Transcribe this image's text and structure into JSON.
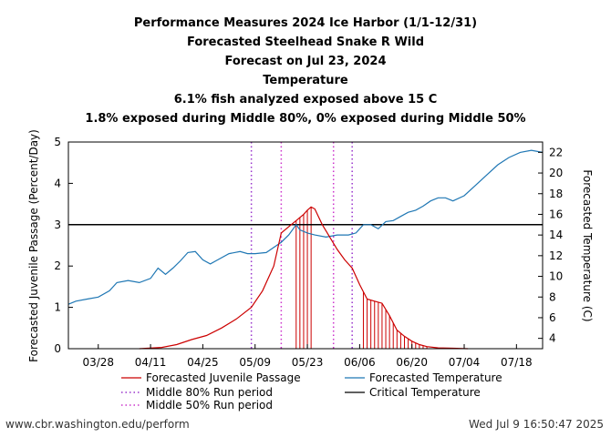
{
  "titles": [
    "Performance Measures 2024 Ice Harbor (1/1-12/31)",
    "Forecasted Steelhead Snake R Wild",
    "Forecast on Jul 23, 2024",
    "Temperature",
    "6.1% fish analyzed exposed above 15 C",
    "1.8% exposed during Middle 80%, 0% exposed during Middle 50%"
  ],
  "footer": {
    "left": "www.cbr.washington.edu/perform",
    "right": "Wed Jul  9 16:50:47 2025"
  },
  "colors": {
    "passage": "#cc0000",
    "temperature": "#1f77b4",
    "critical": "#000000",
    "middle80": "#9933cc",
    "middle50": "#cc33cc"
  },
  "chart_data": {
    "type": "line",
    "x_axis": {
      "range": [
        "2024-03-20",
        "2024-07-25"
      ],
      "tick_labels": [
        "03/28",
        "04/11",
        "04/25",
        "05/09",
        "05/23",
        "06/06",
        "06/20",
        "07/04",
        "07/18"
      ],
      "tick_dates": [
        "2024-03-28",
        "2024-04-11",
        "2024-04-25",
        "2024-05-09",
        "2024-05-23",
        "2024-06-06",
        "2024-06-20",
        "2024-07-04",
        "2024-07-18"
      ]
    },
    "y_left": {
      "label": "Forecasted Juvenile Passage (Percent/Day)",
      "range": [
        0,
        5
      ],
      "ticks": [
        "0",
        "1",
        "2",
        "3",
        "4",
        "5"
      ]
    },
    "y_right": {
      "label": "Forecasted Temperature (C)",
      "range": [
        3,
        23
      ],
      "ticks": [
        "4",
        "6",
        "8",
        "10",
        "12",
        "14",
        "16",
        "18",
        "20",
        "22"
      ]
    },
    "legend": [
      {
        "label": "Forecasted Juvenile Passage",
        "style": "line",
        "color": "#cc0000"
      },
      {
        "label": "Forecasted Temperature",
        "style": "line",
        "color": "#1f77b4"
      },
      {
        "label": "Middle 80% Run period",
        "style": "dotted",
        "color": "#9933cc"
      },
      {
        "label": "Critical Temperature",
        "style": "line",
        "color": "#000000"
      },
      {
        "label": "Middle 50% Run period",
        "style": "dotted",
        "color": "#cc33cc"
      }
    ],
    "critical_temperature": 15,
    "middle80_dates": [
      "2024-05-08",
      "2024-06-04"
    ],
    "middle50_dates": [
      "2024-05-16",
      "2024-05-30"
    ],
    "series": [
      {
        "name": "Forecasted Juvenile Passage",
        "axis": "left",
        "x": [
          "2024-04-08",
          "2024-04-14",
          "2024-04-18",
          "2024-04-22",
          "2024-04-26",
          "2024-04-30",
          "2024-05-04",
          "2024-05-08",
          "2024-05-11",
          "2024-05-14",
          "2024-05-16",
          "2024-05-18",
          "2024-05-20",
          "2024-05-22",
          "2024-05-23",
          "2024-05-24",
          "2024-05-25",
          "2024-05-27",
          "2024-05-29",
          "2024-05-31",
          "2024-06-02",
          "2024-06-04",
          "2024-06-06",
          "2024-06-08",
          "2024-06-10",
          "2024-06-12",
          "2024-06-14",
          "2024-06-16",
          "2024-06-18",
          "2024-06-20",
          "2024-06-22",
          "2024-06-24",
          "2024-06-27",
          "2024-07-01",
          "2024-07-05"
        ],
        "values": [
          0,
          0.03,
          0.1,
          0.22,
          0.32,
          0.5,
          0.72,
          1.0,
          1.4,
          2.0,
          2.8,
          2.95,
          3.1,
          3.25,
          3.35,
          3.43,
          3.38,
          3.0,
          2.7,
          2.4,
          2.15,
          1.95,
          1.55,
          1.2,
          1.15,
          1.1,
          0.8,
          0.45,
          0.3,
          0.18,
          0.1,
          0.05,
          0.02,
          0.01,
          0
        ]
      },
      {
        "name": "Forecasted Temperature",
        "axis": "right",
        "x": [
          "2024-03-20",
          "2024-03-22",
          "2024-03-25",
          "2024-03-28",
          "2024-03-31",
          "2024-04-02",
          "2024-04-05",
          "2024-04-08",
          "2024-04-11",
          "2024-04-13",
          "2024-04-15",
          "2024-04-17",
          "2024-04-19",
          "2024-04-21",
          "2024-04-23",
          "2024-04-25",
          "2024-04-27",
          "2024-04-29",
          "2024-05-02",
          "2024-05-05",
          "2024-05-07",
          "2024-05-09",
          "2024-05-12",
          "2024-05-14",
          "2024-05-16",
          "2024-05-18",
          "2024-05-20",
          "2024-05-21",
          "2024-05-23",
          "2024-05-25",
          "2024-05-28",
          "2024-05-31",
          "2024-06-03",
          "2024-06-05",
          "2024-06-07",
          "2024-06-09",
          "2024-06-11",
          "2024-06-13",
          "2024-06-15",
          "2024-06-17",
          "2024-06-19",
          "2024-06-21",
          "2024-06-23",
          "2024-06-25",
          "2024-06-27",
          "2024-06-29",
          "2024-07-01",
          "2024-07-04",
          "2024-07-07",
          "2024-07-10",
          "2024-07-13",
          "2024-07-16",
          "2024-07-19",
          "2024-07-22",
          "2024-07-25"
        ],
        "values": [
          7.3,
          7.6,
          7.8,
          8.0,
          8.6,
          9.4,
          9.6,
          9.4,
          9.8,
          10.8,
          10.2,
          10.8,
          11.5,
          12.3,
          12.4,
          11.6,
          11.2,
          11.6,
          12.2,
          12.4,
          12.2,
          12.2,
          12.3,
          12.8,
          13.3,
          14.0,
          15.0,
          14.5,
          14.2,
          14.0,
          13.8,
          14.0,
          14.0,
          14.2,
          15.0,
          15.0,
          14.6,
          15.3,
          15.4,
          15.8,
          16.2,
          16.4,
          16.8,
          17.3,
          17.6,
          17.6,
          17.3,
          17.8,
          18.8,
          19.8,
          20.8,
          21.5,
          22.0,
          22.2,
          22.0
        ]
      }
    ]
  }
}
